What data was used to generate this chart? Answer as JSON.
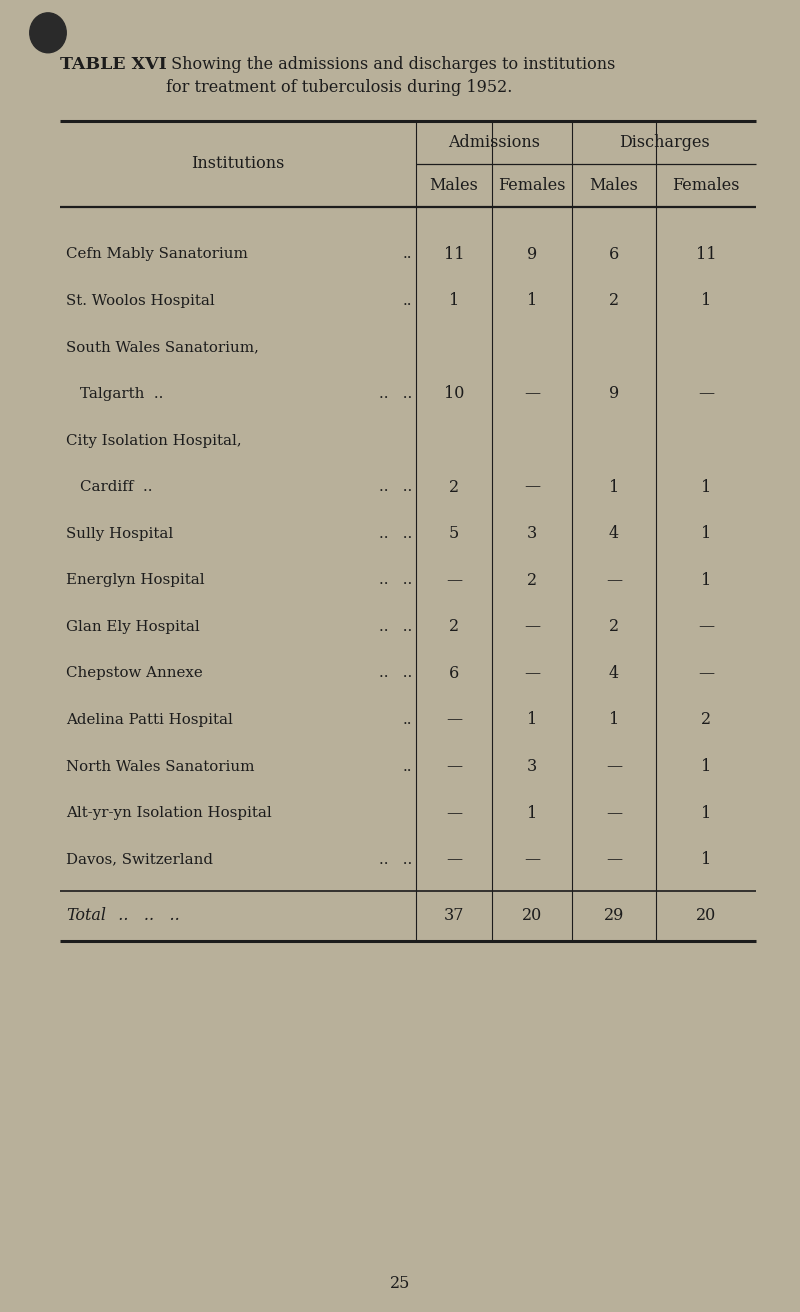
{
  "title_bold": "TABLE XVI",
  "title_rest_line1": " Showing the admissions and discharges to institutions",
  "title_rest_line2": "for treatment of tuberculosis during 1952.",
  "bg_color": "#b8b09a",
  "text_color": "#1c1c1c",
  "institutions": [
    [
      "Cefn Mably Sanatorium",
      ".."
    ],
    [
      "St. Woolos Hospital",
      ".."
    ],
    [
      "South Wales Sanatorium,",
      ""
    ],
    [
      "  Talgarth  ..",
      "..   .."
    ],
    [
      "City Isolation Hospital,",
      ""
    ],
    [
      "  Cardiff  ..",
      "..   .."
    ],
    [
      "Sully Hospital",
      "..   .."
    ],
    [
      "Energlyn Hospital",
      "..   .."
    ],
    [
      "Glan Ely Hospital",
      "..   .."
    ],
    [
      "Chepstow Annexe",
      "..   .."
    ],
    [
      "Adelina Patti Hospital",
      ".."
    ],
    [
      "North Wales Sanatorium",
      ".."
    ],
    [
      "Alt-yr-yn Isolation Hospital",
      ""
    ],
    [
      "Davos, Switzerland",
      "..   .."
    ]
  ],
  "data": [
    [
      "11",
      "9",
      "6",
      "11"
    ],
    [
      "1",
      "1",
      "2",
      "1"
    ],
    [
      "",
      "",
      "",
      ""
    ],
    [
      "10",
      "—",
      "9",
      "—"
    ],
    [
      "",
      "",
      "",
      ""
    ],
    [
      "2",
      "—",
      "1",
      "1"
    ],
    [
      "5",
      "3",
      "4",
      "1"
    ],
    [
      "—",
      "2",
      "—",
      "1"
    ],
    [
      "2",
      "—",
      "2",
      "—"
    ],
    [
      "6",
      "—",
      "4",
      "—"
    ],
    [
      "—",
      "1",
      "1",
      "2"
    ],
    [
      "—",
      "3",
      "—",
      "1"
    ],
    [
      "—",
      "1",
      "—",
      "1"
    ],
    [
      "—",
      "—",
      "—",
      "1"
    ]
  ],
  "total_label": "Total",
  "total_dots": "  ..   ..   ..",
  "totals": [
    "37",
    "20",
    "29",
    "20"
  ],
  "page_number": "25",
  "col_header_label": "Institutions",
  "header1_labels": [
    "Admissions",
    "Discharges"
  ],
  "header2_labels": [
    "Males",
    "Females",
    "Males",
    "Females"
  ]
}
